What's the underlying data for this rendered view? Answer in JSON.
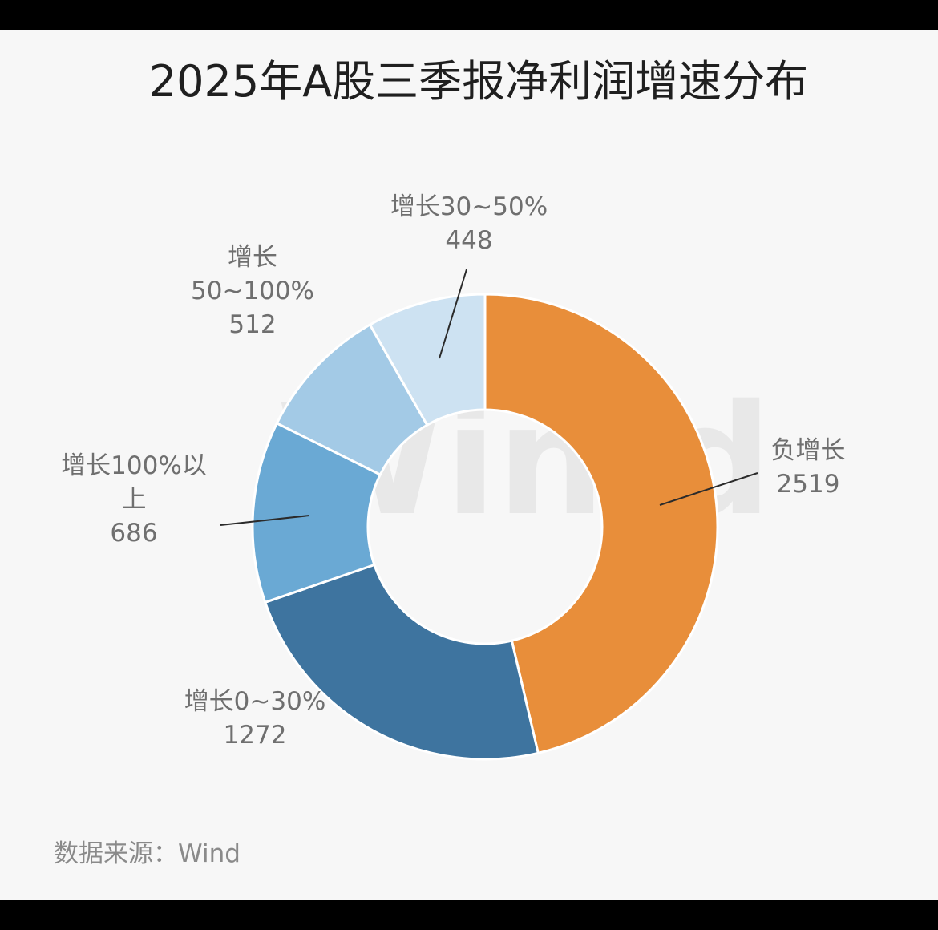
{
  "chart_data": {
    "type": "pie",
    "variant": "donut",
    "title": "2025年A股三季报净利润增速分布",
    "source": "数据来源：Wind",
    "watermark": "Win.d",
    "slices": [
      {
        "label_lines": [
          "负增长"
        ],
        "value": 2519,
        "color": "#e88e3a"
      },
      {
        "label_lines": [
          "增长0~30%"
        ],
        "value": 1272,
        "color": "#3e749f"
      },
      {
        "label_lines": [
          "增长100%以",
          "上"
        ],
        "value": 686,
        "color": "#6aa9d4"
      },
      {
        "label_lines": [
          "增长",
          "50~100%"
        ],
        "value": 512,
        "color": "#a3cae6"
      },
      {
        "label_lines": [
          "增长30~50%"
        ],
        "value": 448,
        "color": "#cde2f2"
      }
    ]
  }
}
